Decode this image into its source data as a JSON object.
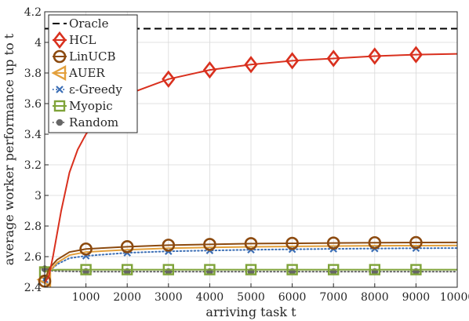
{
  "chart_data": {
    "type": "line",
    "title": "",
    "xlabel": "arriving task t",
    "ylabel": "average worker performance up to t",
    "xlim": [
      0,
      10000
    ],
    "ylim": [
      2.4,
      4.2
    ],
    "xticks": [
      1000,
      2000,
      3000,
      4000,
      5000,
      6000,
      7000,
      8000,
      9000,
      10000
    ],
    "yticks": [
      2.4,
      2.6,
      2.8,
      3.0,
      3.2,
      3.4,
      3.6,
      3.8,
      4.0,
      4.2
    ],
    "ytick_labels": [
      "2.4",
      "2.6",
      "2.8",
      "3",
      "3.2",
      "3.4",
      "3.6",
      "3.8",
      "4",
      "4.2"
    ],
    "grid": true,
    "legend_position": "top-left",
    "series": [
      {
        "name": "Oracle",
        "color": "#000000",
        "style": "dashed",
        "marker": "none",
        "x": [
          0,
          10000
        ],
        "y": [
          4.09,
          4.09
        ]
      },
      {
        "name": "HCL",
        "color": "#d9301e",
        "style": "solid",
        "marker": "diamond",
        "x": [
          0,
          100,
          200,
          400,
          600,
          800,
          1000,
          1500,
          2000,
          3000,
          4000,
          5000,
          6000,
          7000,
          8000,
          9000,
          10000
        ],
        "y": [
          2.43,
          2.47,
          2.6,
          2.9,
          3.15,
          3.3,
          3.4,
          3.58,
          3.66,
          3.76,
          3.82,
          3.855,
          3.88,
          3.895,
          3.91,
          3.92,
          3.925
        ],
        "marker_x": [
          3000,
          4000,
          5000,
          6000,
          7000,
          8000,
          9000
        ],
        "marker_y": [
          3.76,
          3.82,
          3.855,
          3.88,
          3.895,
          3.91,
          3.92
        ]
      },
      {
        "name": "LinUCB",
        "color": "#8c4a0f",
        "style": "solid",
        "marker": "circle",
        "x": [
          0,
          100,
          300,
          600,
          1000,
          2000,
          3000,
          4000,
          5000,
          6000,
          7000,
          8000,
          9000,
          10000
        ],
        "y": [
          2.44,
          2.52,
          2.58,
          2.63,
          2.65,
          2.665,
          2.675,
          2.68,
          2.685,
          2.687,
          2.689,
          2.691,
          2.692,
          2.693
        ],
        "marker_x": [
          0,
          1000,
          2000,
          3000,
          4000,
          5000,
          6000,
          7000,
          8000,
          9000
        ],
        "marker_y": [
          2.44,
          2.65,
          2.665,
          2.675,
          2.68,
          2.685,
          2.687,
          2.689,
          2.691,
          2.692
        ]
      },
      {
        "name": "AUER",
        "color": "#e3a03c",
        "style": "solid",
        "marker": "triangle-left",
        "x": [
          0,
          100,
          300,
          600,
          1000,
          2000,
          3000,
          4000,
          5000,
          6000,
          7000,
          8000,
          9000,
          10000
        ],
        "y": [
          2.45,
          2.5,
          2.56,
          2.61,
          2.63,
          2.645,
          2.655,
          2.66,
          2.664,
          2.667,
          2.669,
          2.671,
          2.672,
          2.673
        ],
        "marker_x": [
          0
        ],
        "marker_y": [
          2.45
        ]
      },
      {
        "name": "ε-Greedy",
        "color": "#3b6eb5",
        "style": "dotted",
        "marker": "x",
        "x": [
          0,
          100,
          300,
          600,
          1000,
          2000,
          3000,
          4000,
          5000,
          6000,
          7000,
          8000,
          9000,
          10000
        ],
        "y": [
          2.45,
          2.5,
          2.55,
          2.59,
          2.605,
          2.625,
          2.635,
          2.64,
          2.645,
          2.648,
          2.651,
          2.653,
          2.655,
          2.656
        ],
        "marker_x": [
          0,
          1000,
          2000,
          3000,
          4000,
          5000,
          6000,
          7000,
          8000,
          9000
        ],
        "marker_y": [
          2.45,
          2.605,
          2.625,
          2.635,
          2.64,
          2.645,
          2.648,
          2.651,
          2.653,
          2.655
        ]
      },
      {
        "name": "Myopic",
        "color": "#7fa339",
        "style": "solid",
        "marker": "square",
        "x": [
          0,
          100,
          300,
          1000,
          10000
        ],
        "y": [
          2.5,
          2.51,
          2.515,
          2.515,
          2.515
        ],
        "marker_x": [
          0,
          1000,
          2000,
          3000,
          4000,
          5000,
          6000,
          7000,
          8000,
          9000
        ],
        "marker_y": [
          2.5,
          2.515,
          2.515,
          2.515,
          2.515,
          2.515,
          2.515,
          2.515,
          2.515,
          2.515
        ]
      },
      {
        "name": "Random",
        "color": "#666666",
        "style": "dotted",
        "marker": "dot",
        "x": [
          0,
          100,
          300,
          1000,
          10000
        ],
        "y": [
          2.52,
          2.51,
          2.505,
          2.502,
          2.502
        ],
        "marker_x": [
          0,
          1000,
          2000,
          3000,
          4000,
          5000,
          6000,
          7000,
          8000,
          9000
        ],
        "marker_y": [
          2.52,
          2.502,
          2.502,
          2.502,
          2.502,
          2.502,
          2.502,
          2.502,
          2.502,
          2.502
        ]
      }
    ]
  }
}
